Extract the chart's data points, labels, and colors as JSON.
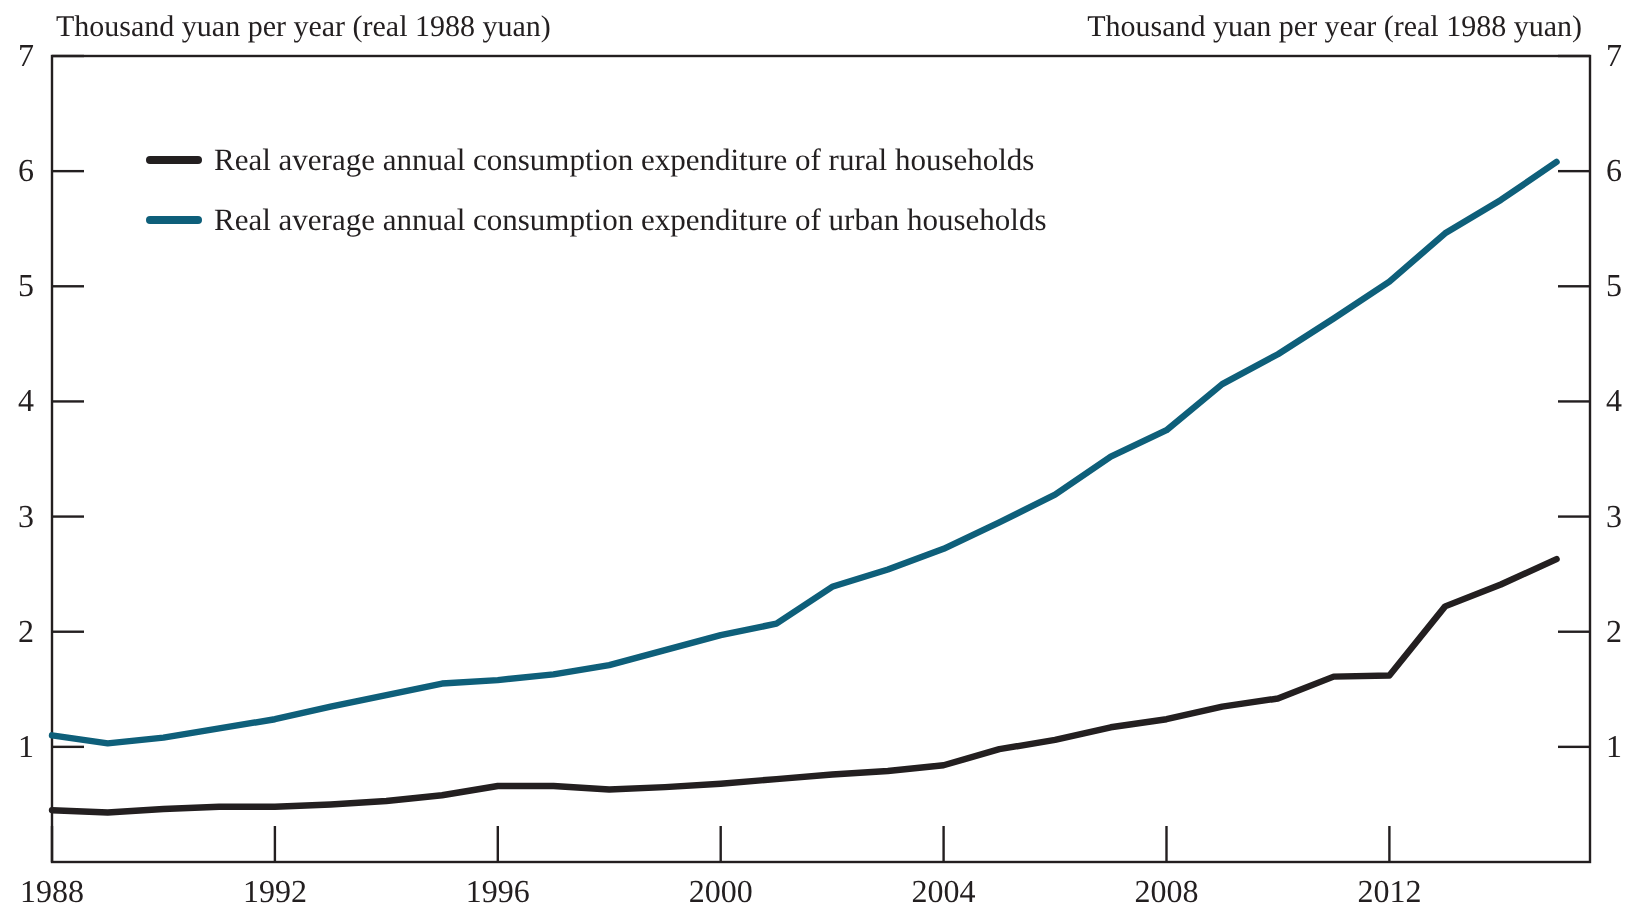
{
  "chart_data": {
    "type": "line",
    "ylabel": "Thousand yuan per year (real 1988 yuan)",
    "y2label": "Thousand yuan per year (real 1988 yuan)",
    "x": [
      1988,
      1989,
      1990,
      1991,
      1992,
      1993,
      1994,
      1995,
      1996,
      1997,
      1998,
      1999,
      2000,
      2001,
      2002,
      2003,
      2004,
      2005,
      2006,
      2007,
      2008,
      2009,
      2010,
      2011,
      2012,
      2013,
      2014,
      2015
    ],
    "series": [
      {
        "name": "Real average annual consumption expenditure of rural households",
        "color": "#231f20",
        "values": [
          0.45,
          0.43,
          0.46,
          0.48,
          0.48,
          0.5,
          0.53,
          0.58,
          0.66,
          0.66,
          0.63,
          0.65,
          0.68,
          0.72,
          0.76,
          0.79,
          0.84,
          0.98,
          1.06,
          1.17,
          1.24,
          1.35,
          1.42,
          1.61,
          1.62,
          2.22,
          2.41,
          2.63
        ]
      },
      {
        "name": "Real average annual consumption expenditure of urban households",
        "color": "#0e5f7a",
        "values": [
          1.1,
          1.03,
          1.08,
          1.16,
          1.24,
          1.35,
          1.45,
          1.55,
          1.58,
          1.63,
          1.71,
          1.84,
          1.97,
          2.07,
          2.39,
          2.54,
          2.72,
          2.95,
          3.19,
          3.52,
          3.75,
          4.15,
          4.41,
          4.72,
          5.04,
          5.46,
          5.75,
          6.08
        ]
      }
    ],
    "xlim": [
      1988,
      2015.6
    ],
    "xticks": [
      1988,
      1992,
      1996,
      2000,
      2004,
      2008,
      2012
    ],
    "ylim": [
      0,
      7
    ],
    "yticks": [
      1,
      2,
      3,
      4,
      5,
      6,
      7
    ],
    "y2lim": [
      0,
      7
    ],
    "y2ticks": [
      1,
      2,
      3,
      4,
      5,
      6,
      7
    ],
    "grid": false,
    "legend": "top left",
    "marker": "none",
    "line_style": "solid"
  }
}
